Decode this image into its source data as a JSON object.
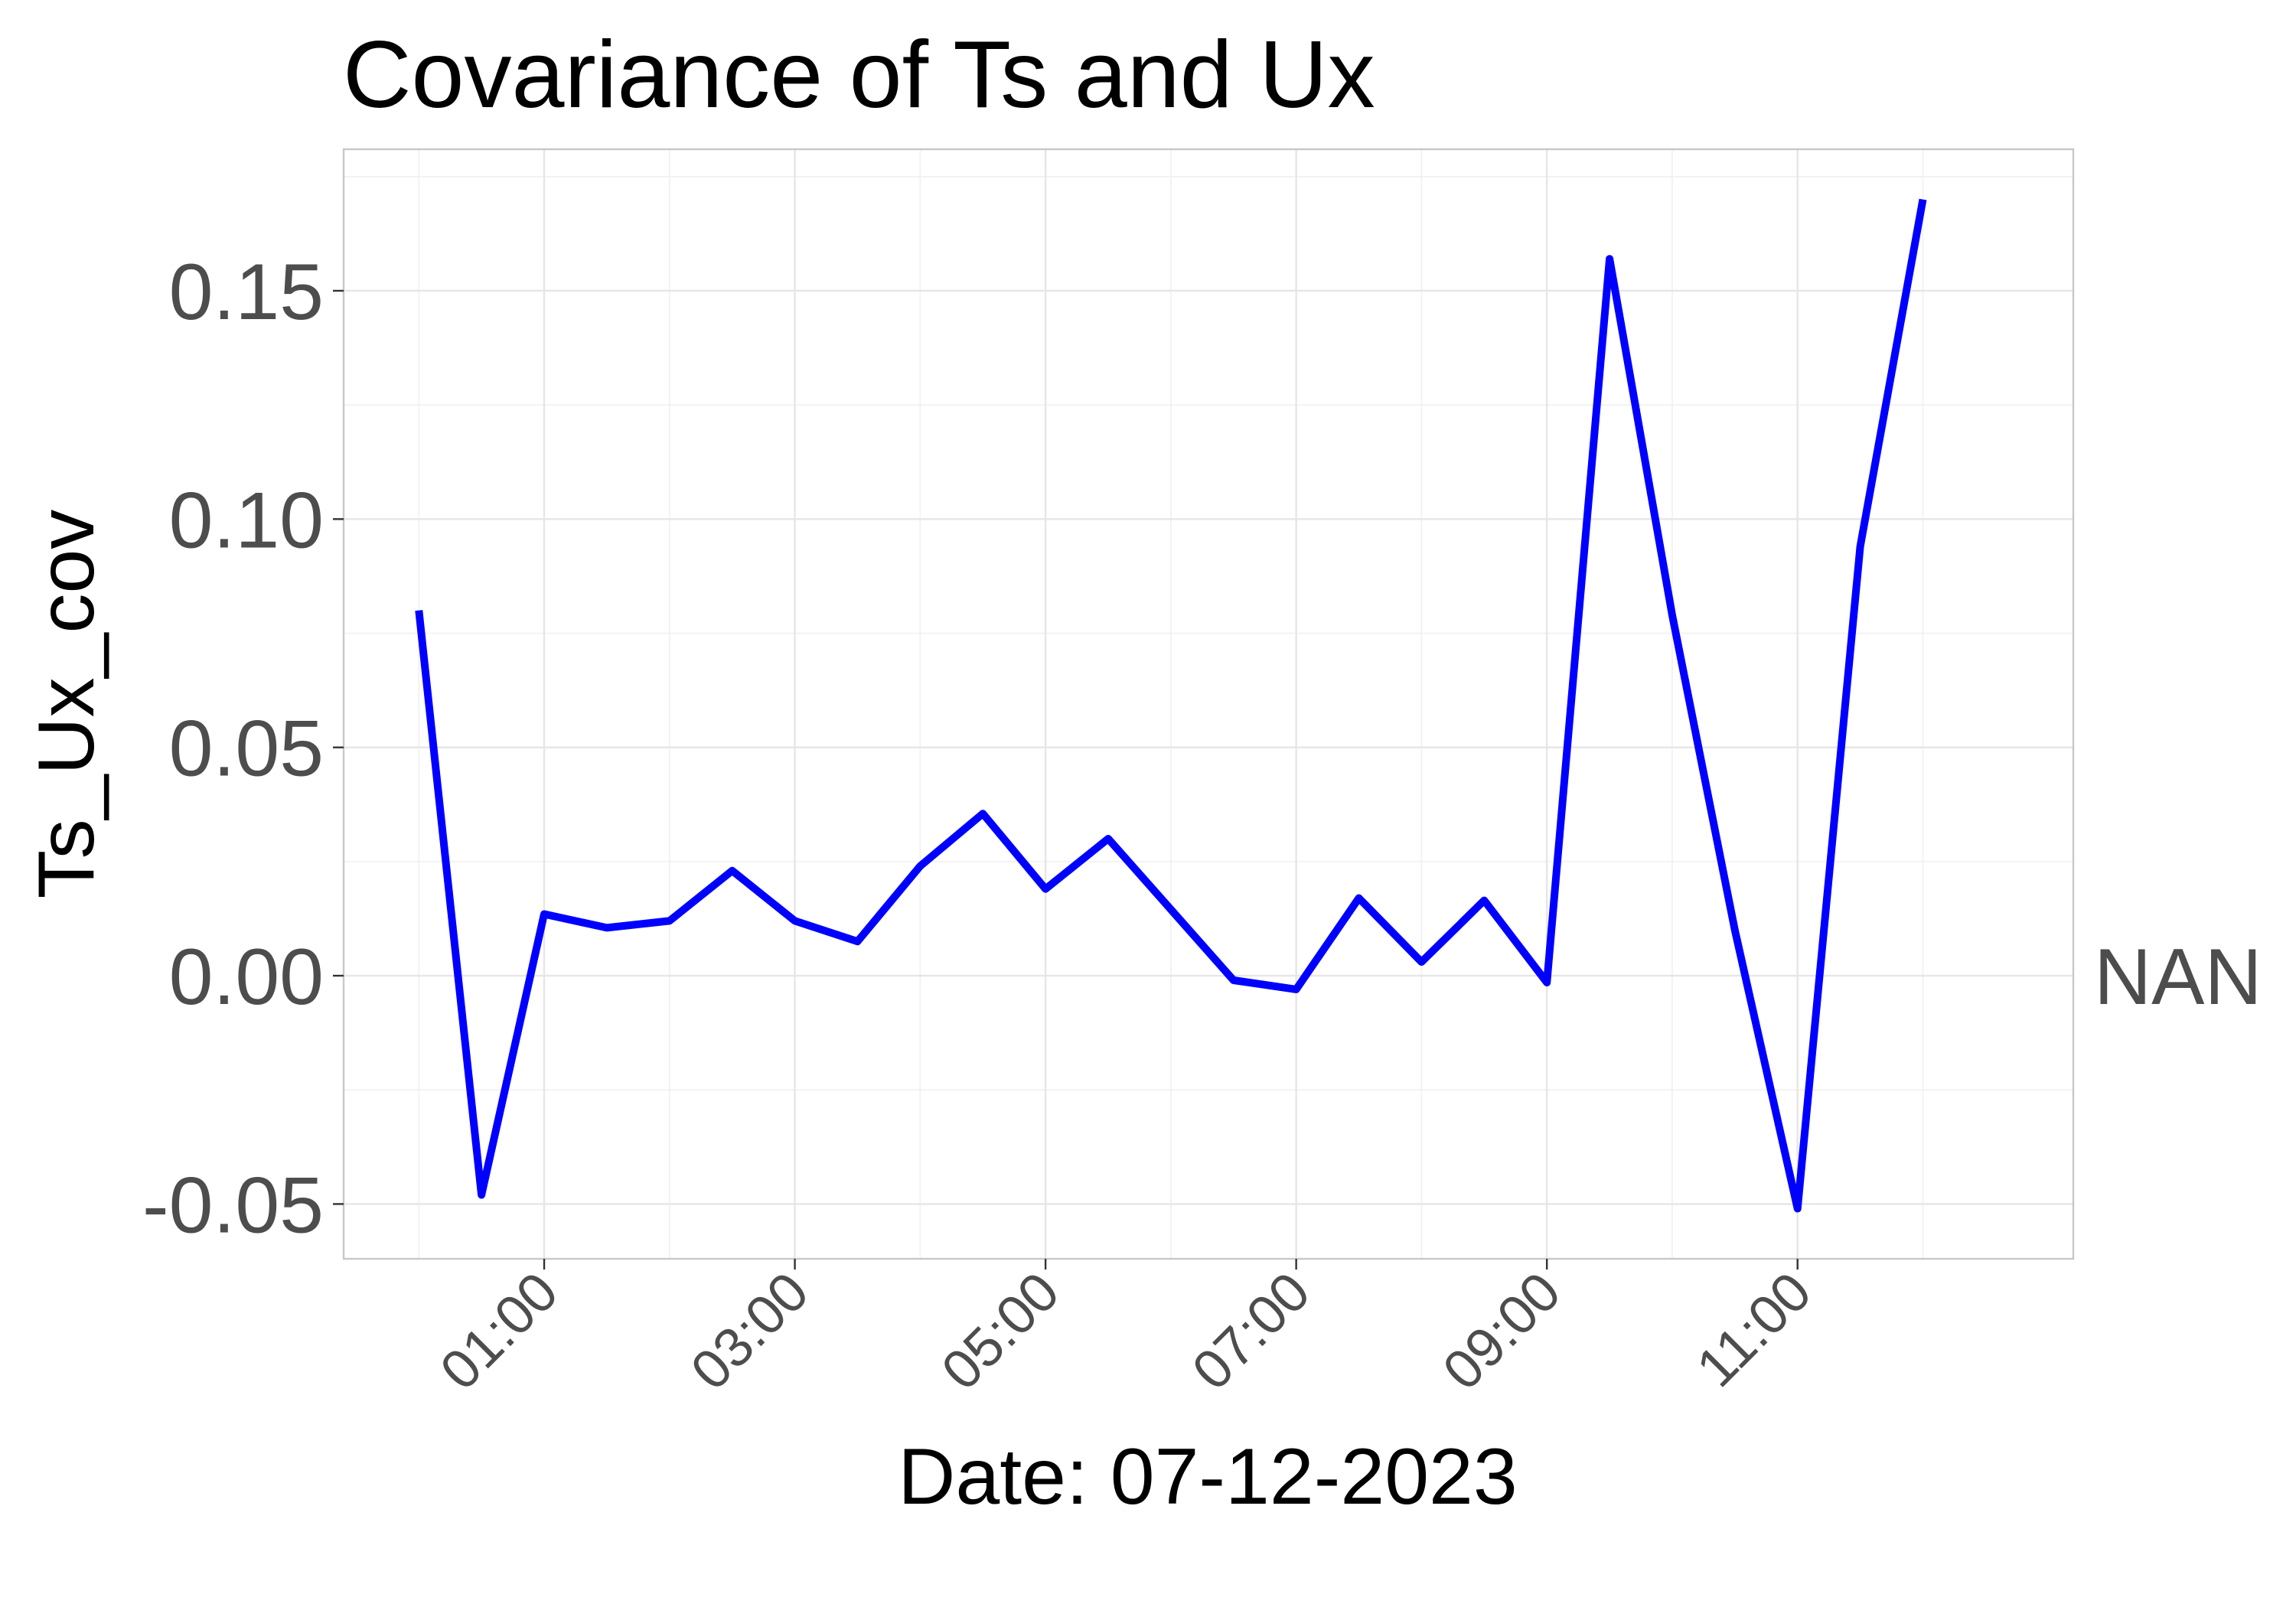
{
  "chart_data": {
    "type": "line",
    "title": "Covariance of Ts and Ux",
    "xlabel": "Date: 07-12-2023",
    "ylabel": "Ts_Ux_cov",
    "x_ticks": [
      "01:00",
      "03:00",
      "05:00",
      "07:00",
      "09:00",
      "11:00"
    ],
    "y_ticks": [
      "-0.05",
      "0.00",
      "0.05",
      "0.10",
      "0.15"
    ],
    "x_tick_values": [
      "01:00",
      "03:00",
      "05:00",
      "07:00",
      "09:00",
      "11:00"
    ],
    "y_tick_values": [
      -0.05,
      0.0,
      0.05,
      0.1,
      0.15
    ],
    "xlim": [
      "23:24",
      "13:12"
    ],
    "ylim": [
      -0.062,
      0.181
    ],
    "secondary_axis_label": "NAN",
    "secondary_axis_value": 0.0,
    "grid": true,
    "series": [
      {
        "color": "#0000ff",
        "x": [
          "00:00",
          "00:30",
          "01:00",
          "01:30",
          "02:00",
          "02:30",
          "03:00",
          "03:30",
          "04:00",
          "04:30",
          "05:00",
          "05:30",
          "06:00",
          "06:30",
          "07:00",
          "07:30",
          "08:00",
          "08:30",
          "09:00",
          "09:30",
          "10:00",
          "10:30",
          "11:00",
          "11:30",
          "12:00"
        ],
        "y": [
          0.08,
          -0.048,
          0.0135,
          0.0105,
          0.012,
          0.023,
          0.012,
          0.0075,
          0.024,
          0.0355,
          0.019,
          0.03,
          0.0145,
          -0.001,
          -0.003,
          0.017,
          0.003,
          0.0165,
          -0.0015,
          0.157,
          0.079,
          0.01,
          -0.051,
          0.094,
          0.17
        ]
      }
    ]
  }
}
